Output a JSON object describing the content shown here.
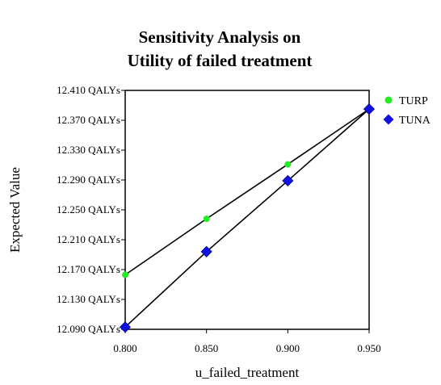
{
  "chart_data": {
    "type": "line",
    "title": [
      "Sensitivity Analysis on",
      "Utility of failed treatment"
    ],
    "xlabel": "u_failed_treatment",
    "ylabel": "Expected Value",
    "x": [
      0.8,
      0.85,
      0.9,
      0.95
    ],
    "xticks": [
      "0.800",
      "0.850",
      "0.900",
      "0.950"
    ],
    "yticks": [
      "12.410 QALYs",
      "12.370 QALYs",
      "12.330 QALYs",
      "12.290 QALYs",
      "12.250 QALYs",
      "12.210 QALYs",
      "12.170 QALYs",
      "12.130 QALYs",
      "12.090 QALYs"
    ],
    "xlim": [
      0.8,
      0.95
    ],
    "ylim": [
      12.09,
      12.41
    ],
    "grid": false,
    "legend_position": "right",
    "series": [
      {
        "name": "TURP",
        "color": "#22ee22",
        "marker": "circle",
        "values": [
          12.163,
          12.238,
          12.311,
          12.385
        ]
      },
      {
        "name": "TUNA",
        "color": "#1010e0",
        "marker": "diamond",
        "values": [
          12.093,
          12.194,
          12.289,
          12.385
        ]
      }
    ]
  }
}
